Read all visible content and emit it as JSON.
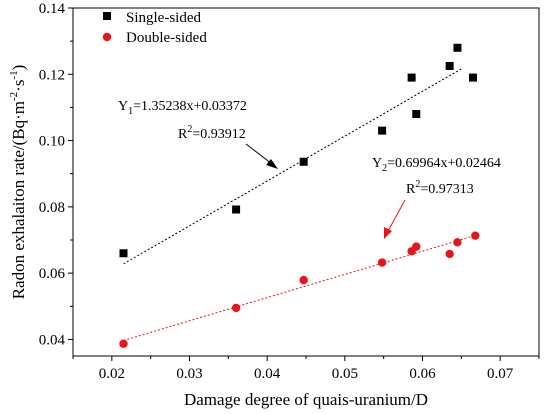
{
  "chart_data": {
    "type": "scatter",
    "xlabel": "Damage degree of quais-uranium/D",
    "ylabel": {
      "base": "Radon exhalaiton rate/(Bq·m",
      "sup1": "-2",
      "mid": "·s",
      "sup2": "-1",
      "end": ")"
    },
    "xlim": [
      0.015,
      0.075
    ],
    "ylim": [
      0.035,
      0.14
    ],
    "xticks": [
      "0.02",
      "0.03",
      "0.04",
      "0.05",
      "0.06",
      "0.07"
    ],
    "yticks": [
      "0.04",
      "0.06",
      "0.08",
      "0.10",
      "0.12",
      "0.14"
    ],
    "xtick_values": [
      0.02,
      0.03,
      0.04,
      0.05,
      0.06,
      0.07
    ],
    "ytick_values": [
      0.04,
      0.06,
      0.08,
      0.1,
      0.12,
      0.14
    ],
    "legend_position": "top-left",
    "grid": false,
    "series": [
      {
        "name": "Single-sided",
        "marker": "square",
        "color": "#000000",
        "trend_color": "#000000",
        "points": [
          [
            0.0215,
            0.066
          ],
          [
            0.036,
            0.0792
          ],
          [
            0.0447,
            0.0936
          ],
          [
            0.0548,
            0.103
          ],
          [
            0.0586,
            0.119
          ],
          [
            0.0592,
            0.108
          ],
          [
            0.0635,
            0.1225
          ],
          [
            0.0645,
            0.128
          ],
          [
            0.0665,
            0.119
          ]
        ],
        "fit": {
          "slope": 1.35238,
          "intercept": 0.03372,
          "x_range": [
            0.0215,
            0.0652
          ]
        },
        "equation": {
          "lhs": "Y",
          "sub": "1",
          "rhs": "=1.35238x+0.03372"
        },
        "r2": {
          "base": "R",
          "sup": "2",
          "rhs": "=0.93912"
        }
      },
      {
        "name": "Double-sided",
        "marker": "circle",
        "color": "#e8141a",
        "trend_color": "#e8141a",
        "points": [
          [
            0.0215,
            0.0387
          ],
          [
            0.036,
            0.0495
          ],
          [
            0.0447,
            0.0579
          ],
          [
            0.0548,
            0.0632
          ],
          [
            0.0586,
            0.0666
          ],
          [
            0.0592,
            0.068
          ],
          [
            0.0635,
            0.0658
          ],
          [
            0.0645,
            0.0693
          ],
          [
            0.0668,
            0.0713
          ]
        ],
        "fit": {
          "slope": 0.69964,
          "intercept": 0.02464,
          "x_range": [
            0.0215,
            0.0668
          ]
        },
        "equation": {
          "lhs": "Y",
          "sub": "2",
          "rhs": "=0.69964x+0.02464"
        },
        "r2": {
          "base": "R",
          "sup": "2",
          "rhs": "=0.97313"
        }
      }
    ]
  }
}
